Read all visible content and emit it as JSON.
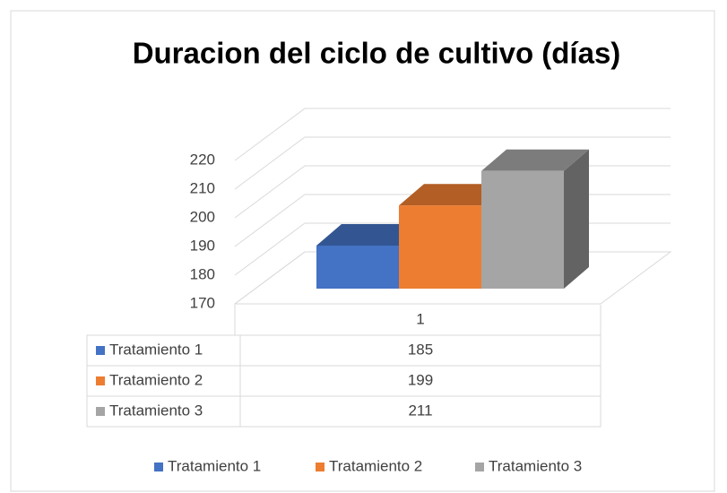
{
  "chart_data": {
    "type": "bar3d",
    "title": "Duracion del ciclo de cultivo (días)",
    "categories": [
      "1"
    ],
    "series": [
      {
        "name": "Tratamiento 1",
        "color": "#4472c4",
        "values": [
          185
        ]
      },
      {
        "name": "Tratamiento 2",
        "color": "#ed7d31",
        "values": [
          199
        ]
      },
      {
        "name": "Tratamiento 3",
        "color": "#a5a5a5",
        "values": [
          211
        ]
      }
    ],
    "ylim": [
      170,
      220
    ],
    "yticks": [
      170,
      180,
      190,
      200,
      210,
      220
    ],
    "grid": true,
    "legend": "bottom"
  }
}
